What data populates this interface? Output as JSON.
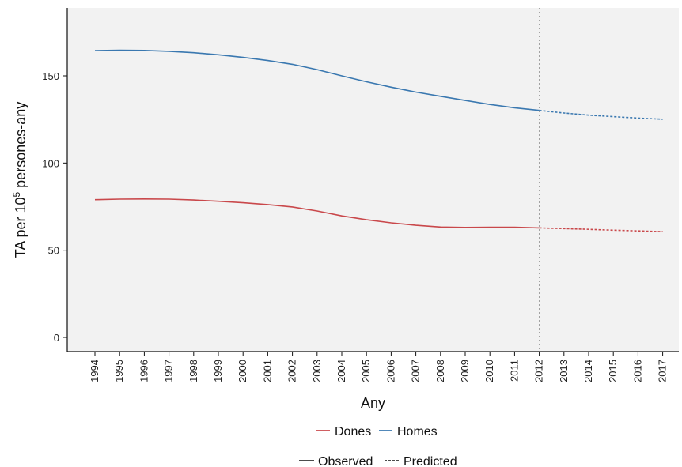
{
  "chart_data": {
    "type": "line",
    "xlabel": "Any",
    "ylabel": "TA per 10",
    "ylabel_sup": "5",
    "ylabel_suffix": " persones-any",
    "ylim": [
      -5,
      190
    ],
    "yticks": [
      0,
      50,
      100,
      150
    ],
    "x": [
      1994,
      1995,
      1996,
      1997,
      1998,
      1999,
      2000,
      2001,
      2002,
      2003,
      2004,
      2005,
      2006,
      2007,
      2008,
      2009,
      2010,
      2011,
      2012,
      2013,
      2014,
      2015,
      2016,
      2017
    ],
    "xtick_labels": [
      "1994",
      "1995",
      "1996",
      "1997",
      "1998",
      "1999",
      "2000",
      "2001",
      "2002",
      "2003",
      "2004",
      "2005",
      "2006",
      "2007",
      "2008",
      "2009",
      "2010",
      "2011",
      "2012",
      "2013",
      "2014",
      "2015",
      "2016",
      "2017"
    ],
    "observed_end": 2012,
    "series": [
      {
        "name": "Dones",
        "color": "#c9484b",
        "observed": [
          79,
          79.3,
          79.4,
          79.3,
          78.8,
          78.1,
          77.2,
          76.2,
          74.8,
          72.5,
          69.7,
          67.5,
          65.7,
          64.3,
          63.3,
          63.1,
          63.2,
          63.2,
          62.8
        ],
        "predicted": [
          62.8,
          62.4,
          62.0,
          61.5,
          61.1,
          60.7
        ]
      },
      {
        "name": "Homes",
        "color": "#3a78b0",
        "observed": [
          164.5,
          164.7,
          164.6,
          164.1,
          163.3,
          162.1,
          160.6,
          158.8,
          156.6,
          153.6,
          150.0,
          146.6,
          143.5,
          140.7,
          138.3,
          135.9,
          133.6,
          131.7,
          130.2
        ],
        "predicted": [
          130.2,
          128.7,
          127.5,
          126.6,
          125.8,
          125.1
        ]
      }
    ],
    "legend_linetype": [
      {
        "name": "Observed",
        "style": "solid"
      },
      {
        "name": "Predicted",
        "style": "dashed"
      }
    ],
    "legend_position": "bottom",
    "grid": false,
    "panel_color": "#f2f2f2"
  }
}
